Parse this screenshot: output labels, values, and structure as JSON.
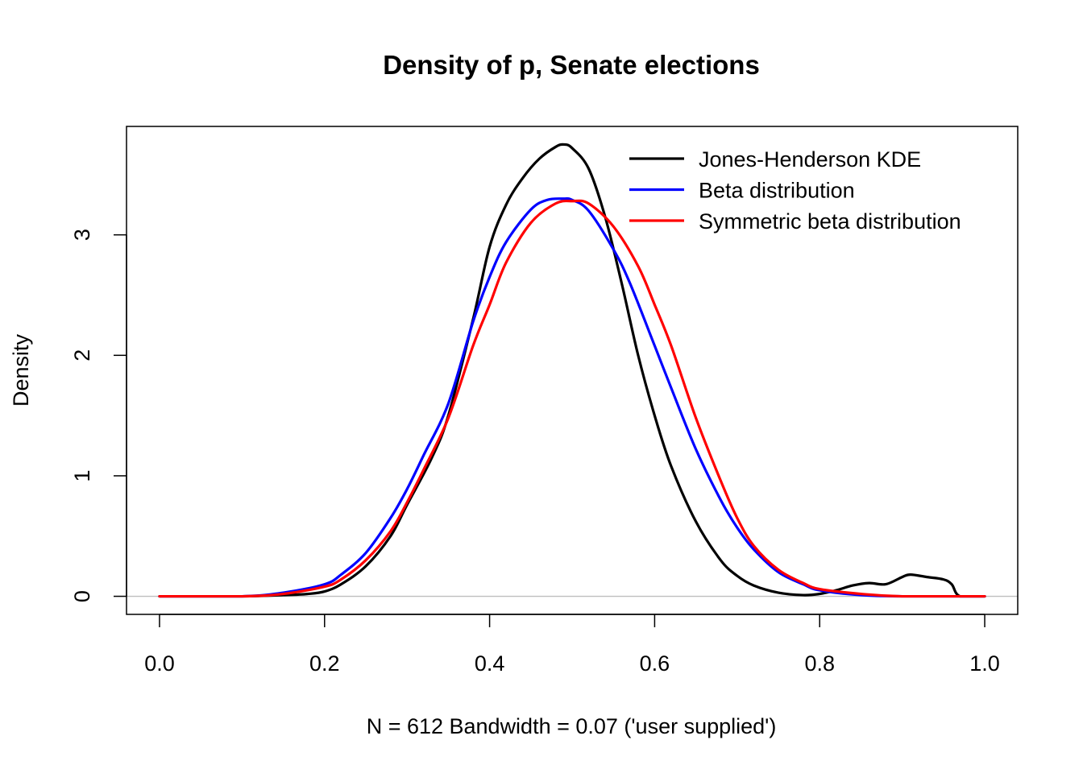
{
  "chart_data": {
    "type": "line",
    "title": "Density of p, Senate elections",
    "xlabel": "N = 612   Bandwidth = 0.07 ('user supplied')",
    "ylabel": "Density",
    "xlim": [
      -0.04,
      1.04
    ],
    "ylim": [
      -0.15,
      3.9
    ],
    "x_ticks": [
      0.0,
      0.2,
      0.4,
      0.6,
      0.8,
      1.0
    ],
    "x_tick_labels": [
      "0.0",
      "0.2",
      "0.4",
      "0.6",
      "0.8",
      "1.0"
    ],
    "y_ticks": [
      0,
      1,
      2,
      3
    ],
    "y_tick_labels": [
      "0",
      "1",
      "2",
      "3"
    ],
    "grid": false,
    "zero_line": true,
    "legend": {
      "position": "top-right",
      "box": false
    },
    "series": [
      {
        "name": "Jones-Henderson KDE",
        "color": "#000000",
        "x": [
          0.0,
          0.1,
          0.15,
          0.18,
          0.2,
          0.22,
          0.25,
          0.28,
          0.3,
          0.33,
          0.35,
          0.38,
          0.4,
          0.42,
          0.44,
          0.46,
          0.48,
          0.49,
          0.5,
          0.52,
          0.54,
          0.56,
          0.58,
          0.6,
          0.62,
          0.65,
          0.68,
          0.7,
          0.72,
          0.75,
          0.78,
          0.8,
          0.82,
          0.84,
          0.86,
          0.88,
          0.9,
          0.91,
          0.93,
          0.95,
          0.96,
          0.97,
          1.0
        ],
        "y": [
          0.0,
          0.0,
          0.01,
          0.02,
          0.04,
          0.1,
          0.25,
          0.5,
          0.76,
          1.15,
          1.5,
          2.3,
          2.9,
          3.25,
          3.47,
          3.63,
          3.73,
          3.75,
          3.72,
          3.55,
          3.15,
          2.6,
          2.0,
          1.5,
          1.08,
          0.62,
          0.3,
          0.17,
          0.09,
          0.03,
          0.01,
          0.02,
          0.05,
          0.09,
          0.11,
          0.1,
          0.16,
          0.18,
          0.16,
          0.14,
          0.1,
          0.0,
          0.0
        ]
      },
      {
        "name": "Beta distribution",
        "color": "#0000ff",
        "x": [
          0.0,
          0.1,
          0.15,
          0.2,
          0.22,
          0.25,
          0.28,
          0.3,
          0.32,
          0.35,
          0.38,
          0.4,
          0.42,
          0.45,
          0.47,
          0.49,
          0.5,
          0.52,
          0.55,
          0.57,
          0.6,
          0.62,
          0.65,
          0.68,
          0.7,
          0.72,
          0.75,
          0.78,
          0.8,
          0.85,
          0.9,
          1.0
        ],
        "y": [
          0.0,
          0.0,
          0.03,
          0.1,
          0.18,
          0.36,
          0.65,
          0.89,
          1.17,
          1.6,
          2.28,
          2.65,
          2.94,
          3.21,
          3.29,
          3.3,
          3.29,
          3.2,
          2.88,
          2.6,
          2.08,
          1.73,
          1.22,
          0.8,
          0.57,
          0.39,
          0.2,
          0.1,
          0.05,
          0.01,
          0.0,
          0.0
        ]
      },
      {
        "name": "Symmetric beta distribution",
        "color": "#ff0000",
        "x": [
          0.0,
          0.1,
          0.15,
          0.2,
          0.22,
          0.25,
          0.28,
          0.3,
          0.32,
          0.35,
          0.38,
          0.4,
          0.42,
          0.45,
          0.48,
          0.5,
          0.52,
          0.55,
          0.58,
          0.6,
          0.62,
          0.65,
          0.68,
          0.7,
          0.72,
          0.75,
          0.78,
          0.8,
          0.85,
          0.9,
          1.0
        ],
        "y": [
          0.0,
          0.0,
          0.02,
          0.08,
          0.14,
          0.3,
          0.54,
          0.78,
          1.05,
          1.48,
          2.08,
          2.42,
          2.77,
          3.1,
          3.26,
          3.28,
          3.26,
          3.07,
          2.74,
          2.42,
          2.08,
          1.48,
          0.96,
          0.65,
          0.42,
          0.22,
          0.11,
          0.06,
          0.02,
          0.0,
          0.0
        ]
      }
    ]
  }
}
